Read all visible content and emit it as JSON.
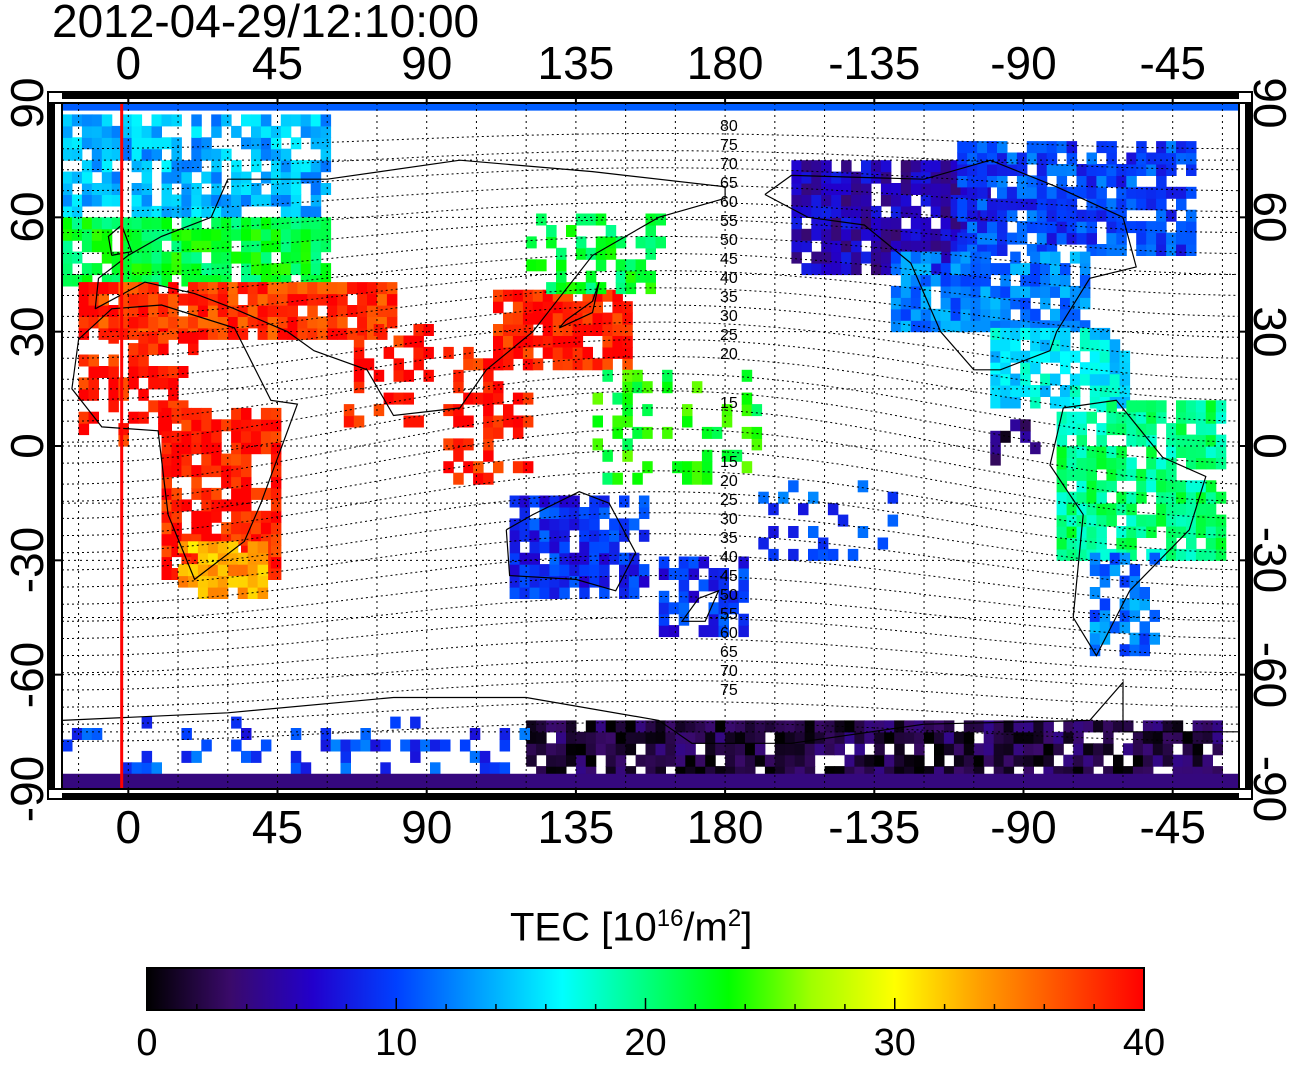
{
  "title": "2012-04-29/12:10:00",
  "lon_ticks": [
    {
      "deg": 0,
      "label": "0"
    },
    {
      "deg": 45,
      "label": "45"
    },
    {
      "deg": 90,
      "label": "90"
    },
    {
      "deg": 135,
      "label": "135"
    },
    {
      "deg": 180,
      "label": "180"
    },
    {
      "deg": 225,
      "label": "-135"
    },
    {
      "deg": 270,
      "label": "-90"
    },
    {
      "deg": 315,
      "label": "-45"
    }
  ],
  "lat_ticks": [
    {
      "deg": 90,
      "label": "90"
    },
    {
      "deg": 60,
      "label": "60"
    },
    {
      "deg": 30,
      "label": "30"
    },
    {
      "deg": 0,
      "label": "0"
    },
    {
      "deg": -30,
      "label": "-30"
    },
    {
      "deg": -60,
      "label": "-60"
    },
    {
      "deg": -90,
      "label": "-90"
    }
  ],
  "contour_labels_north": [
    "80",
    "75",
    "70",
    "65",
    "60",
    "55",
    "50",
    "45",
    "40",
    "35",
    "30",
    "25",
    "20",
    "15"
  ],
  "contour_labels_south": [
    "15",
    "20",
    "25",
    "30",
    "35",
    "40",
    "45",
    "50",
    "55",
    "60",
    "65",
    "70",
    "75"
  ],
  "colorbar": {
    "label_main": "TEC  [10",
    "label_exp": "16",
    "label_unit": "/m",
    "label_exp2": "2",
    "label_close": "]",
    "ticks": [
      "0",
      "10",
      "20",
      "30",
      "40"
    ],
    "min": 0,
    "max": 40,
    "colors": [
      "#000000",
      "#3a0a6a",
      "#2200cc",
      "#0040ff",
      "#00a0ff",
      "#00ffff",
      "#00ff80",
      "#00ff00",
      "#a0ff00",
      "#ffff00",
      "#ffa000",
      "#ff5000",
      "#ff0000"
    ]
  },
  "map": {
    "lon_min": -20,
    "lon_max": 335,
    "lat_min": -90,
    "lat_max": 90,
    "terminator_lon": -2,
    "terminator_color": "#ff0000"
  }
}
